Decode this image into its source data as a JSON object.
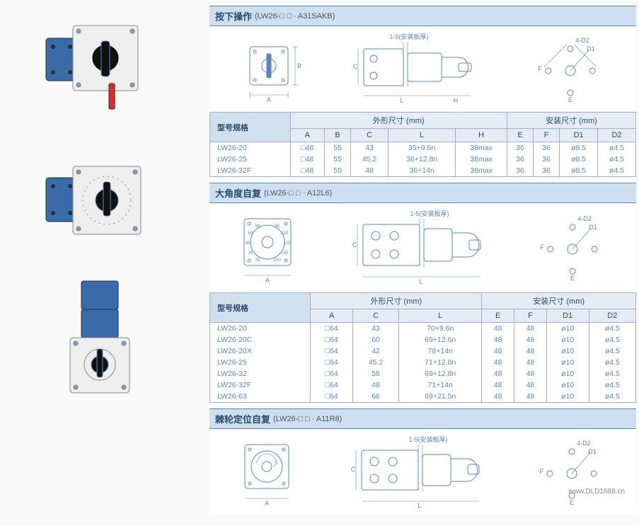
{
  "watermark": "www.DLD1688.cn",
  "sections": [
    {
      "title": "按下操作",
      "subtitle": "(LW26-□ □ · A31SAKB)",
      "diagram_labels": {
        "panel": "1-5(安装板厚)",
        "hole": "4-D2",
        "d1": "D1"
      },
      "table": {
        "model_header": "型号规格",
        "group1_header": "外形尺寸 (mm)",
        "group2_header": "安装尺寸 (mm)",
        "cols1": [
          "A",
          "B",
          "C",
          "L",
          "H"
        ],
        "cols2": [
          "E",
          "F",
          "D1",
          "D2"
        ],
        "rows": [
          {
            "model": "LW26-20",
            "A": "□48",
            "B": "55",
            "C": "43",
            "L": "35+9.6n",
            "H": "38max",
            "E": "36",
            "F": "36",
            "D1": "ø8.5",
            "D2": "ø4.5"
          },
          {
            "model": "LW26-25",
            "A": "□48",
            "B": "55",
            "C": "45.2",
            "L": "36+12.8n",
            "H": "38max",
            "E": "36",
            "F": "36",
            "D1": "ø8.5",
            "D2": "ø4.5"
          },
          {
            "model": "LW26-32F",
            "A": "□48",
            "B": "55",
            "C": "48",
            "L": "36+14n",
            "H": "38max",
            "E": "36",
            "F": "36",
            "D1": "ø8.5",
            "D2": "ø4.5"
          }
        ]
      }
    },
    {
      "title": "大角度自复",
      "subtitle": "(LW26-□ □ · A12L6)",
      "diagram_labels": {
        "panel": "1-5(安装板厚)",
        "hole": "4-D2",
        "d1": "D1"
      },
      "table": {
        "model_header": "型号规格",
        "group1_header": "外形尺寸 (mm)",
        "group2_header": "安装尺寸 (mm)",
        "cols1": [
          "A",
          "C",
          "L"
        ],
        "cols2": [
          "E",
          "F",
          "D1",
          "D2"
        ],
        "rows": [
          {
            "model": "LW26-20",
            "A": "□64",
            "C": "43",
            "L": "70+9.6n",
            "E": "48",
            "F": "48",
            "D1": "ø10",
            "D2": "ø4.5"
          },
          {
            "model": "LW26-20C",
            "A": "□64",
            "C": "60",
            "L": "69+12.6n",
            "E": "48",
            "F": "48",
            "D1": "ø10",
            "D2": "ø4.5"
          },
          {
            "model": "LW26-20X",
            "A": "□64",
            "C": "42",
            "L": "78+14n",
            "E": "48",
            "F": "48",
            "D1": "ø10",
            "D2": "ø4.5"
          },
          {
            "model": "LW26-25",
            "A": "□64",
            "C": "45.2",
            "L": "71+12.8n",
            "E": "48",
            "F": "48",
            "D1": "ø10",
            "D2": "ø4.5"
          },
          {
            "model": "LW26-32",
            "A": "□64",
            "C": "58",
            "L": "69+12.8n",
            "E": "48",
            "F": "48",
            "D1": "ø10",
            "D2": "ø4.5"
          },
          {
            "model": "LW26-32F",
            "A": "□64",
            "C": "48",
            "L": "71+14n",
            "E": "48",
            "F": "48",
            "D1": "ø10",
            "D2": "ø4.5"
          },
          {
            "model": "LW26-63",
            "A": "□64",
            "C": "66",
            "L": "69+21.5n",
            "E": "48",
            "F": "48",
            "D1": "ø10",
            "D2": "ø4.5"
          }
        ]
      }
    },
    {
      "title": "棘轮定位自复",
      "subtitle": "(LW26-□ □ · A11R8)",
      "diagram_labels": {
        "panel": "1-5(安装板厚)",
        "hole": "4-D2",
        "d1": "D1"
      }
    }
  ],
  "dial_angles": [
    "30",
    "30",
    "60",
    "60",
    "90",
    "90",
    "120",
    "120",
    "150",
    "150"
  ],
  "colors": {
    "header_bg": "#cddff0",
    "border": "#5a87b8",
    "text_blue": "#2a4a6a",
    "cell_text": "#5a87b8"
  }
}
